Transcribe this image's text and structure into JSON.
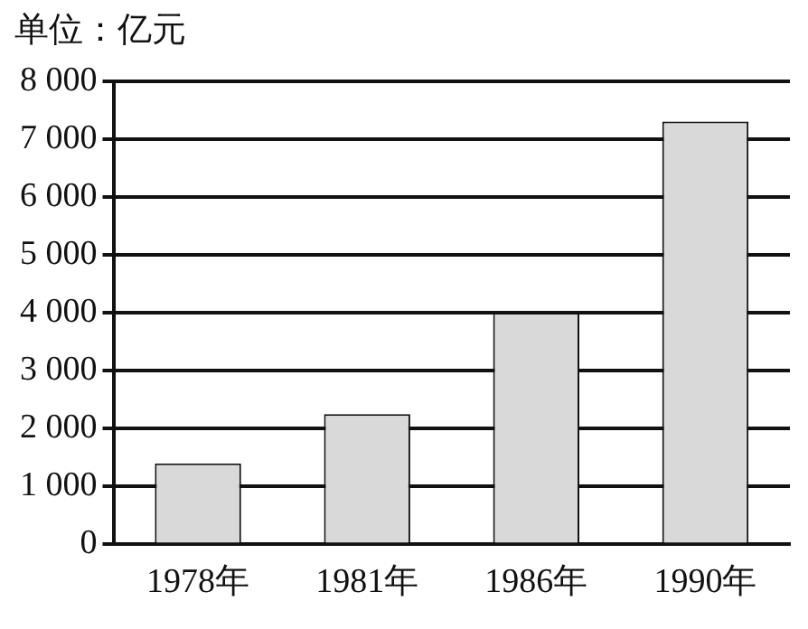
{
  "chart_data": {
    "type": "bar",
    "title": "单位：亿元",
    "categories": [
      "1978年",
      "1981年",
      "1986年",
      "1990年"
    ],
    "values": [
      1400,
      2250,
      4000,
      7300
    ],
    "color": "#d9d9d9",
    "ylim": [
      0,
      8000
    ],
    "yticks": [
      0,
      {
        "value": 1000,
        "label": "1 000"
      },
      {
        "value": 2000,
        "label": "2 000"
      },
      {
        "value": 3000,
        "label": "3 000"
      },
      {
        "value": 4000,
        "label": "4 000"
      },
      {
        "value": 5000,
        "label": "5 000"
      },
      {
        "value": 6000,
        "label": "6 000"
      },
      {
        "value": 7000,
        "label": "7 000"
      },
      {
        "value": 8000,
        "label": "8 000"
      }
    ],
    "grid": "y"
  }
}
